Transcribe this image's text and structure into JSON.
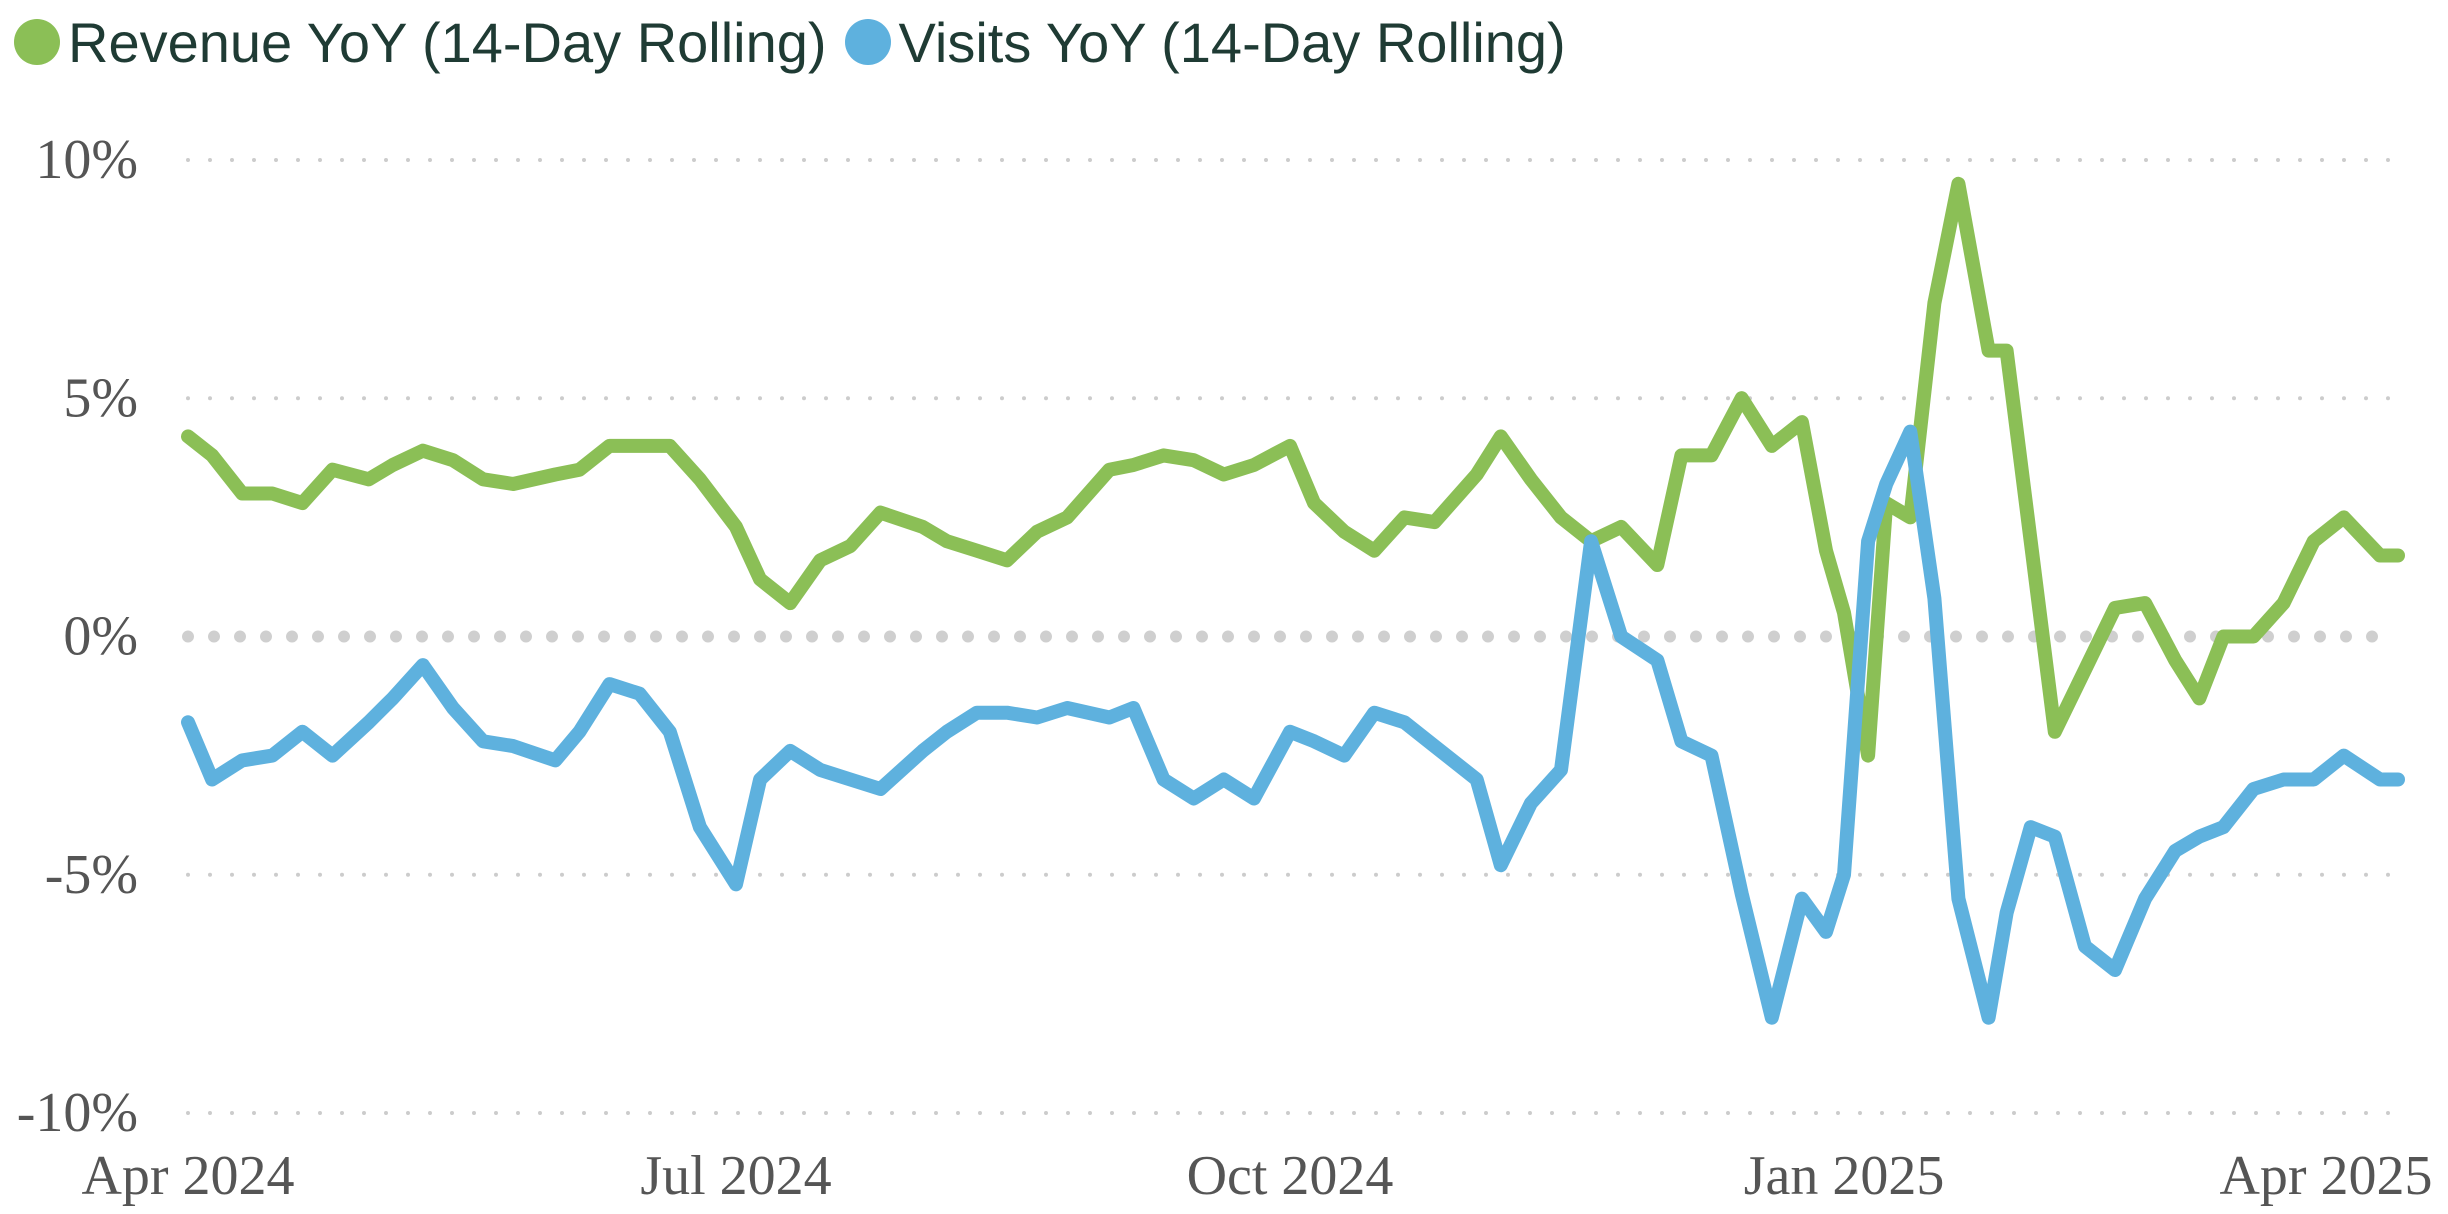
{
  "chart_data": {
    "type": "line",
    "title": "",
    "xlabel": "",
    "ylabel": "",
    "legend_position": "top-left",
    "grid": true,
    "zero_line": true,
    "ylim": [
      -0.1,
      0.1
    ],
    "xlim": [
      "2024-04-01",
      "2025-04-01"
    ],
    "y_ticks": [
      {
        "value": 0.1,
        "label": "10%"
      },
      {
        "value": 0.05,
        "label": "5%"
      },
      {
        "value": 0.0,
        "label": "0%"
      },
      {
        "value": -0.05,
        "label": "-5%"
      },
      {
        "value": -0.1,
        "label": "-10%"
      }
    ],
    "x_ticks": [
      {
        "value": "2024-04-01",
        "label": "Apr 2024"
      },
      {
        "value": "2024-07-01",
        "label": "Jul 2024"
      },
      {
        "value": "2024-10-01",
        "label": "Oct 2024"
      },
      {
        "value": "2025-01-01",
        "label": "Jan 2025"
      },
      {
        "value": "2025-04-01",
        "label": "Apr 2025"
      }
    ],
    "series": [
      {
        "name": "Revenue YoY (14-Day Rolling)",
        "color": "#8bbf56",
        "x": [
          "2024-04-01",
          "2024-04-05",
          "2024-04-10",
          "2024-04-15",
          "2024-04-20",
          "2024-04-25",
          "2024-05-01",
          "2024-05-05",
          "2024-05-10",
          "2024-05-15",
          "2024-05-20",
          "2024-05-25",
          "2024-06-01",
          "2024-06-05",
          "2024-06-10",
          "2024-06-15",
          "2024-06-20",
          "2024-06-25",
          "2024-07-01",
          "2024-07-05",
          "2024-07-10",
          "2024-07-15",
          "2024-07-20",
          "2024-07-25",
          "2024-08-01",
          "2024-08-05",
          "2024-08-10",
          "2024-08-15",
          "2024-08-20",
          "2024-08-25",
          "2024-09-01",
          "2024-09-05",
          "2024-09-10",
          "2024-09-15",
          "2024-09-20",
          "2024-09-25",
          "2024-10-01",
          "2024-10-05",
          "2024-10-10",
          "2024-10-15",
          "2024-10-20",
          "2024-10-25",
          "2024-11-01",
          "2024-11-05",
          "2024-11-10",
          "2024-11-15",
          "2024-11-20",
          "2024-11-25",
          "2024-12-01",
          "2024-12-05",
          "2024-12-10",
          "2024-12-15",
          "2024-12-20",
          "2024-12-25",
          "2024-12-29",
          "2025-01-01",
          "2025-01-05",
          "2025-01-08",
          "2025-01-12",
          "2025-01-16",
          "2025-01-20",
          "2025-01-25",
          "2025-01-28",
          "2025-02-01",
          "2025-02-05",
          "2025-02-10",
          "2025-02-15",
          "2025-02-20",
          "2025-02-25",
          "2025-03-01",
          "2025-03-05",
          "2025-03-10",
          "2025-03-15",
          "2025-03-20",
          "2025-03-25",
          "2025-03-31"
        ],
        "values": [
          0.042,
          0.038,
          0.03,
          0.03,
          0.028,
          0.035,
          0.033,
          0.036,
          0.039,
          0.037,
          0.033,
          0.032,
          0.034,
          0.035,
          0.04,
          0.04,
          0.04,
          0.033,
          0.023,
          0.012,
          0.007,
          0.016,
          0.019,
          0.026,
          0.023,
          0.02,
          0.018,
          0.016,
          0.022,
          0.025,
          0.035,
          0.036,
          0.038,
          0.037,
          0.034,
          0.036,
          0.04,
          0.028,
          0.022,
          0.018,
          0.025,
          0.024,
          0.034,
          0.042,
          0.033,
          0.025,
          0.02,
          0.023,
          0.015,
          0.038,
          0.038,
          0.05,
          0.04,
          0.045,
          0.018,
          0.005,
          -0.025,
          0.028,
          0.025,
          0.07,
          0.095,
          0.06,
          0.06,
          0.02,
          -0.02,
          -0.007,
          0.006,
          0.007,
          -0.005,
          -0.013,
          0.0,
          0.0,
          0.007,
          0.02,
          0.025,
          0.017
        ],
        "end_date": "2025-04-03"
      },
      {
        "name": "Visits YoY (14-Day Rolling)",
        "color": "#5eb1de",
        "x": [
          "2024-04-01",
          "2024-04-05",
          "2024-04-10",
          "2024-04-15",
          "2024-04-20",
          "2024-04-25",
          "2024-05-01",
          "2024-05-05",
          "2024-05-10",
          "2024-05-15",
          "2024-05-20",
          "2024-05-25",
          "2024-06-01",
          "2024-06-05",
          "2024-06-10",
          "2024-06-15",
          "2024-06-20",
          "2024-06-25",
          "2024-07-01",
          "2024-07-05",
          "2024-07-10",
          "2024-07-15",
          "2024-07-20",
          "2024-07-25",
          "2024-08-01",
          "2024-08-05",
          "2024-08-10",
          "2024-08-15",
          "2024-08-20",
          "2024-08-25",
          "2024-09-01",
          "2024-09-05",
          "2024-09-10",
          "2024-09-15",
          "2024-09-20",
          "2024-09-25",
          "2024-10-01",
          "2024-10-05",
          "2024-10-10",
          "2024-10-15",
          "2024-10-20",
          "2024-10-25",
          "2024-11-01",
          "2024-11-05",
          "2024-11-10",
          "2024-11-15",
          "2024-11-20",
          "2024-11-25",
          "2024-12-01",
          "2024-12-05",
          "2024-12-10",
          "2024-12-15",
          "2024-12-20",
          "2024-12-25",
          "2024-12-29",
          "2025-01-01",
          "2025-01-05",
          "2025-01-08",
          "2025-01-12",
          "2025-01-16",
          "2025-01-20",
          "2025-01-25",
          "2025-01-28",
          "2025-02-01",
          "2025-02-05",
          "2025-02-10",
          "2025-02-15",
          "2025-02-20",
          "2025-02-25",
          "2025-03-01",
          "2025-03-05",
          "2025-03-10",
          "2025-03-15",
          "2025-03-20",
          "2025-03-25",
          "2025-03-31"
        ],
        "values": [
          -0.018,
          -0.03,
          -0.026,
          -0.025,
          -0.02,
          -0.025,
          -0.018,
          -0.013,
          -0.006,
          -0.015,
          -0.022,
          -0.023,
          -0.026,
          -0.02,
          -0.01,
          -0.012,
          -0.02,
          -0.04,
          -0.052,
          -0.03,
          -0.024,
          -0.028,
          -0.03,
          -0.032,
          -0.024,
          -0.02,
          -0.016,
          -0.016,
          -0.017,
          -0.015,
          -0.017,
          -0.015,
          -0.03,
          -0.034,
          -0.03,
          -0.034,
          -0.02,
          -0.022,
          -0.025,
          -0.016,
          -0.018,
          -0.023,
          -0.03,
          -0.048,
          -0.035,
          -0.028,
          0.02,
          0.0,
          -0.005,
          -0.022,
          -0.025,
          -0.054,
          -0.08,
          -0.055,
          -0.062,
          -0.05,
          0.02,
          0.032,
          0.043,
          0.008,
          -0.055,
          -0.08,
          -0.058,
          -0.04,
          -0.042,
          -0.065,
          -0.07,
          -0.055,
          -0.045,
          -0.042,
          -0.04,
          -0.032,
          -0.03,
          -0.03,
          -0.025,
          -0.03
        ],
        "end_date": "2025-04-03"
      }
    ]
  }
}
